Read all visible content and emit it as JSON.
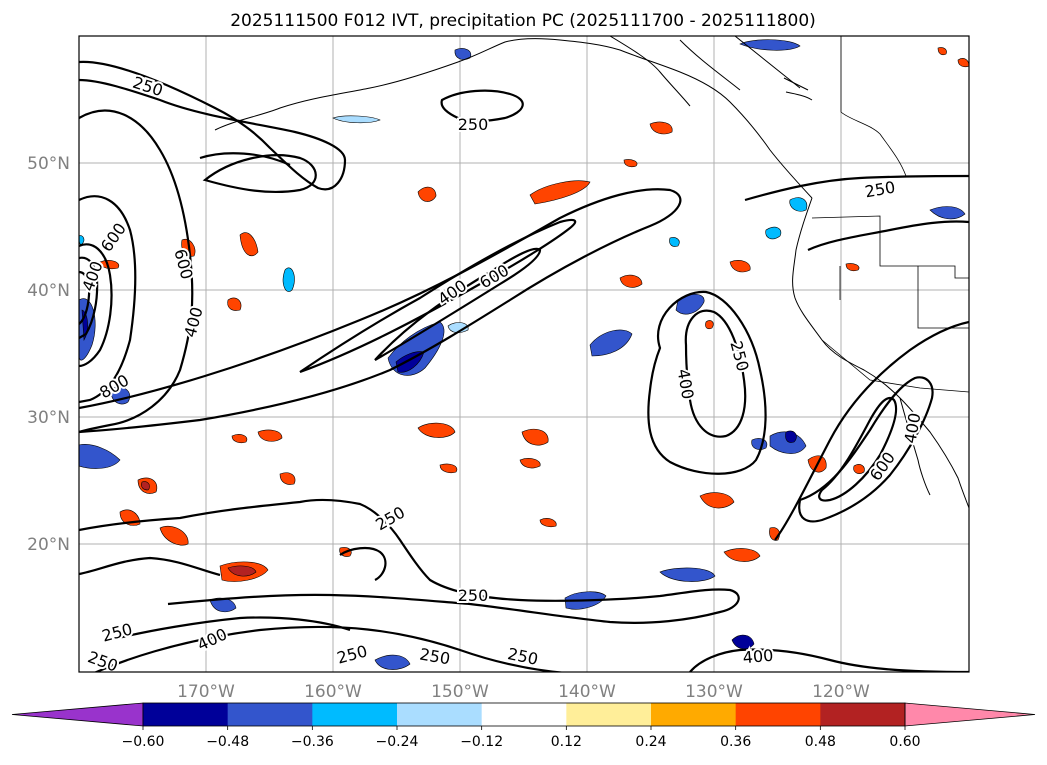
{
  "title": "2025111500 F012 IVT, precipitation PC (2025111700 - 2025111800)",
  "map": {
    "lon_range": [
      -180,
      -110
    ],
    "lat_range": [
      10,
      60
    ],
    "lat_labels": [
      "50°N",
      "40°N",
      "30°N",
      "20°N"
    ],
    "lon_labels": [
      "170°W",
      "160°W",
      "150°W",
      "140°W",
      "130°W",
      "120°W"
    ],
    "grid": true,
    "ivt_contour_levels": [
      250,
      400,
      600,
      800
    ],
    "contour_labels": [
      {
        "text": "250"
      },
      {
        "text": "250"
      },
      {
        "text": "250"
      },
      {
        "text": "250"
      },
      {
        "text": "250"
      },
      {
        "text": "250"
      },
      {
        "text": "250"
      },
      {
        "text": "250"
      },
      {
        "text": "250"
      },
      {
        "text": "250"
      },
      {
        "text": "250"
      },
      {
        "text": "400"
      },
      {
        "text": "400"
      },
      {
        "text": "400"
      },
      {
        "text": "400"
      },
      {
        "text": "400"
      },
      {
        "text": "400"
      },
      {
        "text": "400"
      },
      {
        "text": "600"
      },
      {
        "text": "600"
      },
      {
        "text": "600"
      },
      {
        "text": "600"
      },
      {
        "text": "800"
      }
    ]
  },
  "colorbar": {
    "ticks": [
      "−0.60",
      "−0.48",
      "−0.36",
      "−0.24",
      "−0.12",
      "0.12",
      "0.24",
      "0.36",
      "0.48",
      "0.60"
    ],
    "colors": {
      "under": "#9933cc",
      "bins": [
        "#000099",
        "#3355cc",
        "#00bbff",
        "#aaddff",
        "#ffffff",
        "#ffee99",
        "#ffaa00",
        "#ff4400",
        "#b22222"
      ],
      "over": "#ff88aa"
    }
  }
}
